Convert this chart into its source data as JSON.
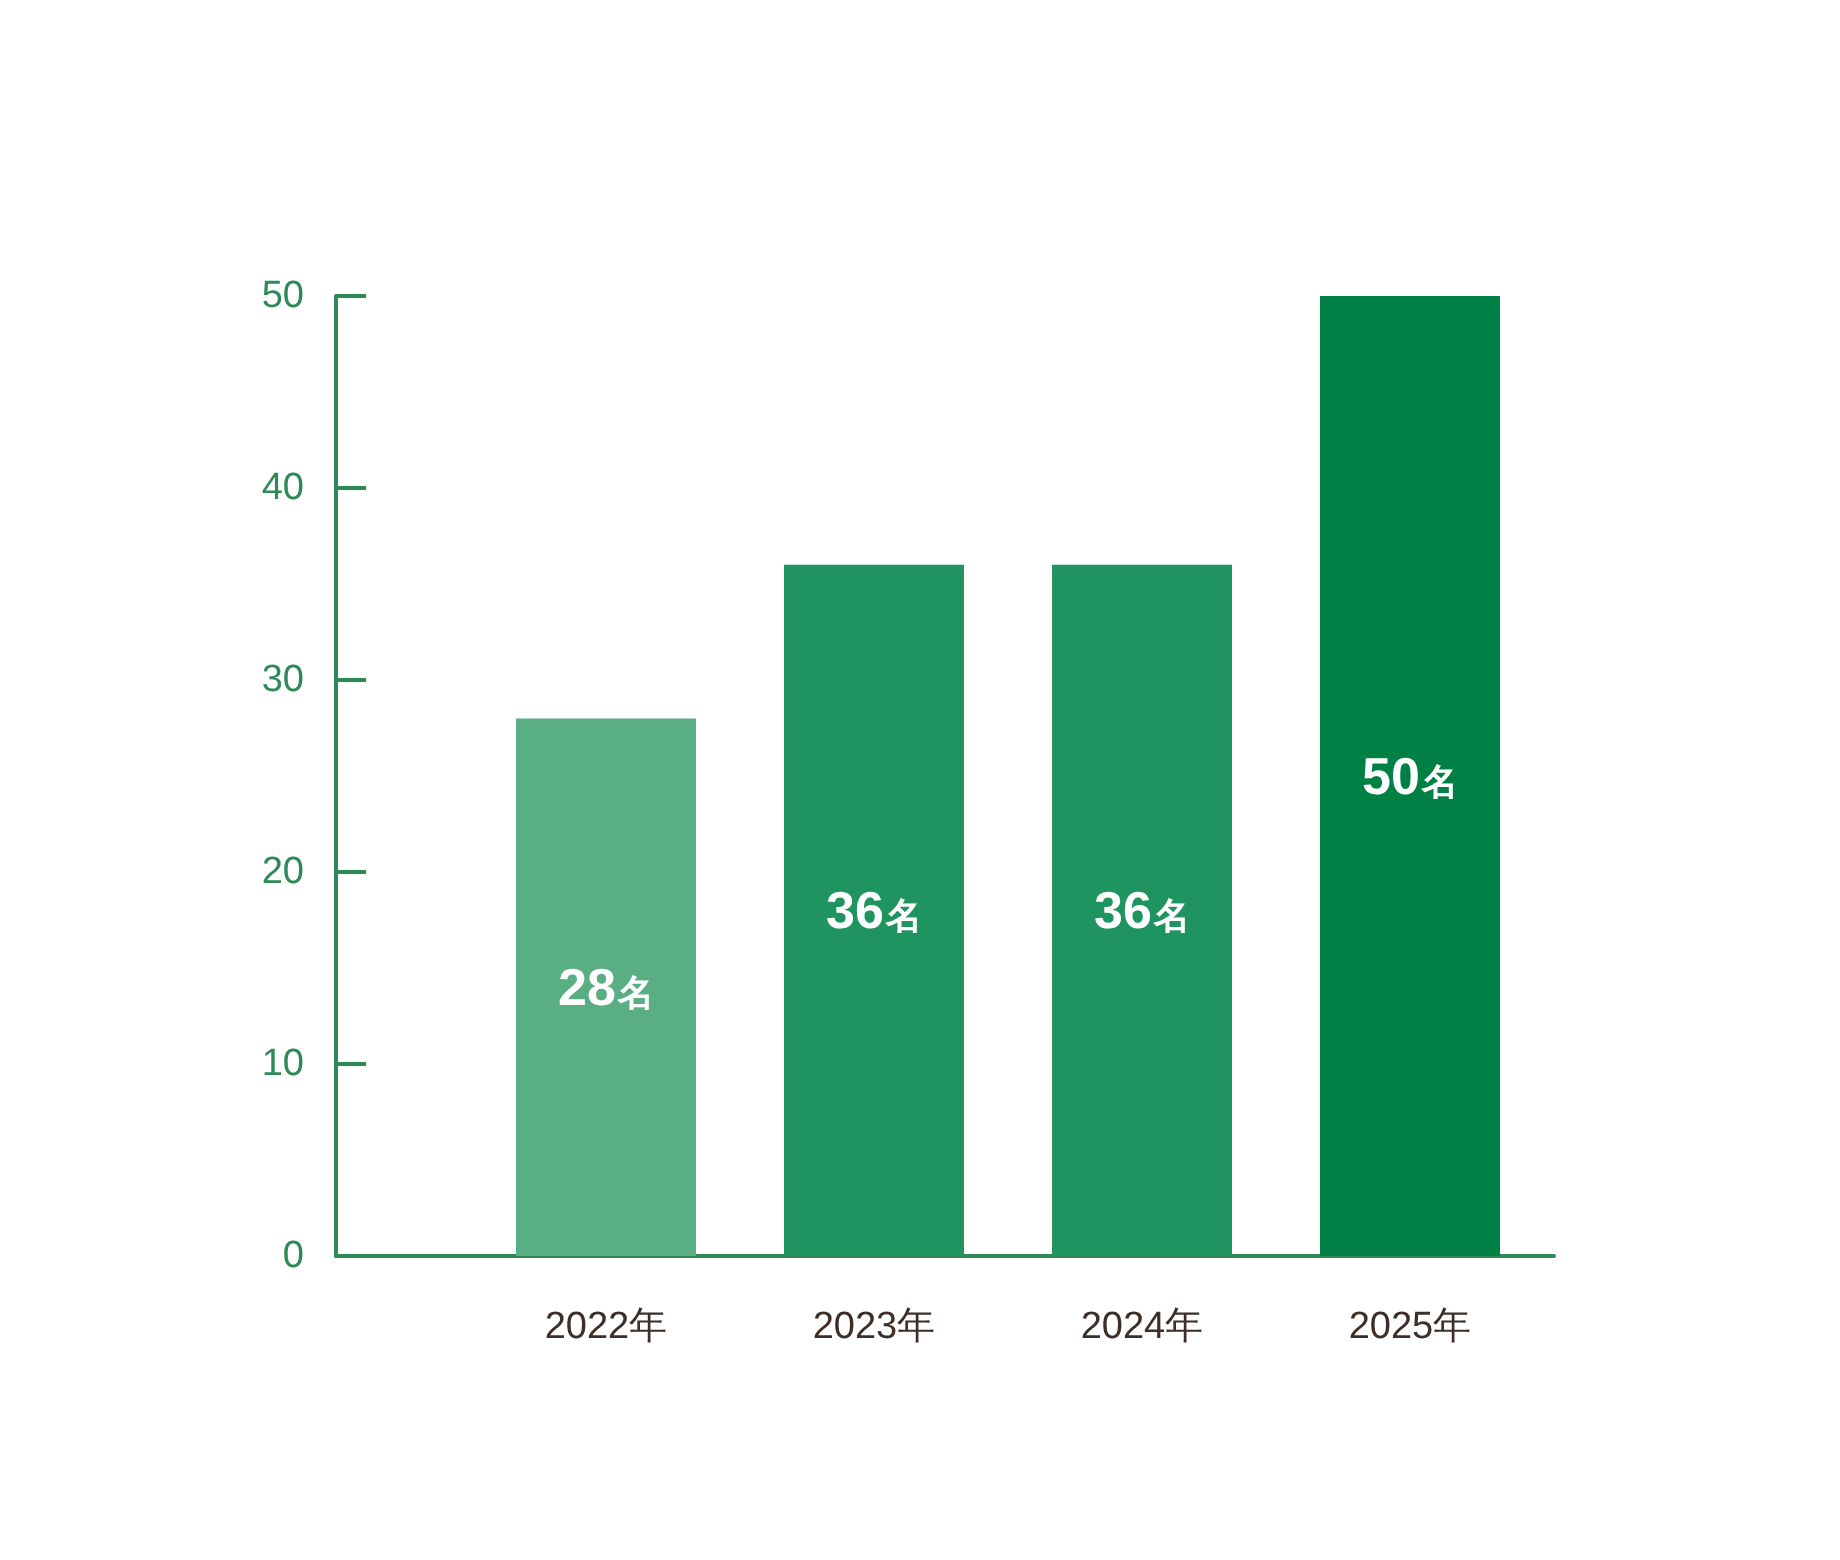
{
  "chart_data": {
    "type": "bar",
    "categories": [
      "2022年",
      "2023年",
      "2024年",
      "2025年"
    ],
    "values": [
      28,
      36,
      36,
      50
    ],
    "colors": [
      "#5aae84",
      "#1f9460",
      "#1f9460",
      "#008044"
    ],
    "value_labels": [
      "28名",
      "36名",
      "36名",
      "50名"
    ],
    "ylim": [
      0,
      50
    ],
    "yticks": [
      0,
      10,
      20,
      30,
      40,
      50
    ]
  }
}
